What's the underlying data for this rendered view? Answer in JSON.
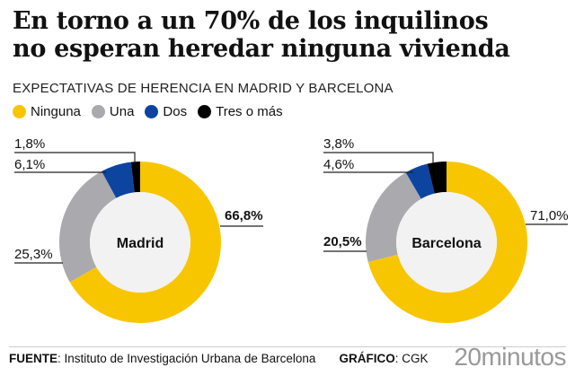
{
  "title_line1": "En torno a un 70% de los inquilinos",
  "title_line2": "no esperan heredar ninguna vivienda",
  "subtitle": "EXPECTATIVAS DE HERENCIA EN MADRID Y BARCELONA",
  "footer": {
    "source_label": "FUENTE",
    "source": "Instituto de Investigación Urbana de Barcelona",
    "graphic_label": "GRÁFICO",
    "graphic": "CGK",
    "logo": "20minutos"
  },
  "chart_data": [
    {
      "type": "pie",
      "variant": "donut",
      "center_label": "Madrid",
      "categories": [
        "Ninguna",
        "Una",
        "Dos",
        "Tres o más"
      ],
      "values": [
        66.8,
        25.3,
        6.1,
        1.8
      ],
      "labels": [
        "66,8%",
        "25,3%",
        "6,1%",
        "1,8%"
      ]
    },
    {
      "type": "pie",
      "variant": "donut",
      "center_label": "Barcelona",
      "categories": [
        "Ninguna",
        "Una",
        "Dos",
        "Tres o más"
      ],
      "values": [
        71.0,
        20.5,
        4.6,
        3.8
      ],
      "labels": [
        "71,0%",
        "20,5%",
        "4,6%",
        "3,8%"
      ]
    }
  ],
  "legend": [
    "Ninguna",
    "Una",
    "Dos",
    "Tres o más"
  ],
  "colors": [
    "#f8c600",
    "#a9a9ae",
    "#0c44a0",
    "#000000"
  ],
  "center_fill": "#f2f2f2"
}
